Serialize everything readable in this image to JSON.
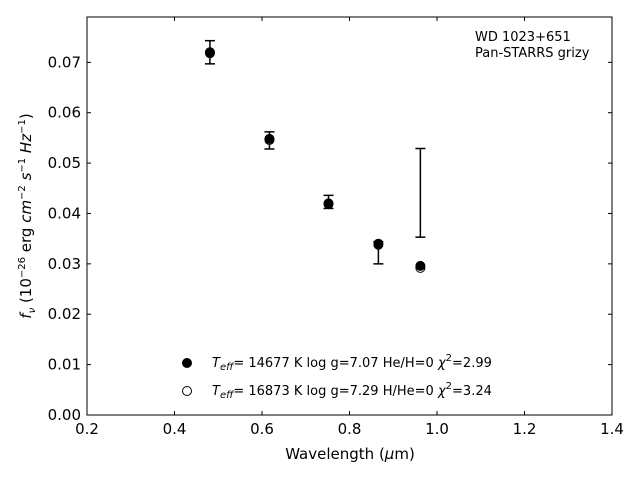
{
  "chart_data": {
    "type": "scatter",
    "xlabel": "Wavelength (μm)",
    "ylabel": "fν (10⁻²⁶ erg cm⁻² s⁻¹ Hz⁻¹)",
    "xlim": [
      0.2,
      1.4
    ],
    "ylim": [
      0.0,
      0.079
    ],
    "xticks": [
      "0.2",
      "0.4",
      "0.6",
      "0.8",
      "1.0",
      "1.2",
      "1.4"
    ],
    "yticks": [
      "0.00",
      "0.01",
      "0.02",
      "0.03",
      "0.04",
      "0.05",
      "0.06",
      "0.07"
    ],
    "annotation": [
      "WD 1023+651",
      "Pan-STARRS grizy"
    ],
    "observed": [
      {
        "x": 0.481,
        "y": 0.072,
        "err": 0.0023
      },
      {
        "x": 0.617,
        "y": 0.0545,
        "err": 0.0017
      },
      {
        "x": 0.752,
        "y": 0.0423,
        "err": 0.0013
      },
      {
        "x": 0.866,
        "y": 0.0322,
        "err": 0.0022
      },
      {
        "x": 0.962,
        "y": 0.0441,
        "err": 0.0088
      }
    ],
    "series": [
      {
        "name": "Teff= 14677 K  log g=7.07  He/H=0  χ²=2.99",
        "marker": "filled",
        "x": [
          0.481,
          0.617,
          0.752,
          0.866,
          0.962
        ],
        "y": [
          0.072,
          0.0548,
          0.042,
          0.034,
          0.0296
        ]
      },
      {
        "name": "Teff= 16873 K  log g=7.29  H/He=0  χ²=3.24",
        "marker": "open",
        "x": [
          0.481,
          0.617,
          0.752,
          0.866,
          0.962
        ],
        "y": [
          0.0718,
          0.0546,
          0.0419,
          0.0338,
          0.0292
        ]
      }
    ],
    "legend": {
      "placement": "lower-center",
      "entries": [
        {
          "teff": "14677",
          "logg": "7.07",
          "comp": "He/H=0",
          "chi2": "2.99"
        },
        {
          "teff": "16873",
          "logg": "7.29",
          "comp": "H/He=0",
          "chi2": "3.24"
        }
      ]
    },
    "grid": false
  }
}
